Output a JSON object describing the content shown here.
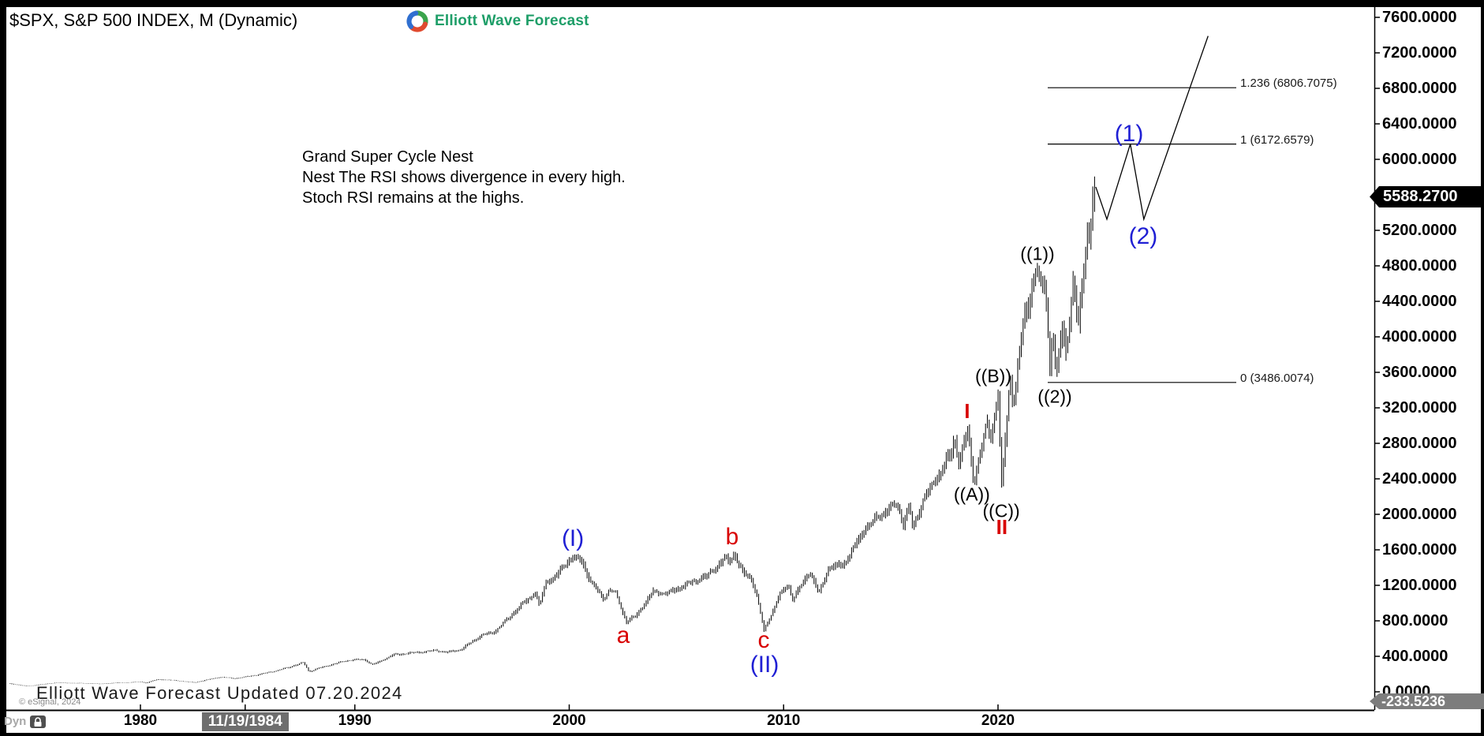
{
  "header": {
    "title": "$SPX, S&P 500 INDEX, M (Dynamic)",
    "logo_text": "Elliott Wave Forecast"
  },
  "annotation": {
    "line1": "Grand Super Cycle Nest",
    "line2": "Nest The RSI shows divergence in every high.",
    "line3": "Stoch RSI remains at the highs."
  },
  "footer": {
    "watermark": "Elliott Wave Forecast Updated 07.20.2024",
    "copyright": "© eSignal, 2024",
    "template_label": "Dyn"
  },
  "price_scale": {
    "labels": [
      "7600.0000",
      "7200.0000",
      "6800.0000",
      "6400.0000",
      "6000.0000",
      "5600.0000",
      "5200.0000",
      "4800.0000",
      "4400.0000",
      "4000.0000",
      "3600.0000",
      "3200.0000",
      "2800.0000",
      "2400.0000",
      "2000.0000",
      "1600.0000",
      "1200.0000",
      "800.0000",
      "400.0000",
      "0.0000"
    ],
    "last_price": "5588.2700",
    "change_badge": "-233.5236"
  },
  "time_scale": {
    "labels": [
      {
        "text": "1980",
        "year": 1980,
        "highlighted": false
      },
      {
        "text": "11/19/1984",
        "year": 1984.885,
        "highlighted": true
      },
      {
        "text": "1990",
        "year": 1990,
        "highlighted": false
      },
      {
        "text": "2000",
        "year": 2000,
        "highlighted": false
      },
      {
        "text": "2010",
        "year": 2010,
        "highlighted": false
      },
      {
        "text": "2020",
        "year": 2020,
        "highlighted": false
      }
    ]
  },
  "fib_levels": [
    {
      "ratio": "1.236",
      "value": 6806.7075,
      "label": "1.236 (6806.7075)"
    },
    {
      "ratio": "1",
      "value": 6172.6579,
      "label": "1 (6172.6579)"
    },
    {
      "ratio": "0",
      "value": 3486.0074,
      "label": "0 (3486.0074)"
    }
  ],
  "wave_labels": [
    {
      "text": "(I)",
      "style": "blue",
      "year": 2000.17,
      "value": 1724
    },
    {
      "text": "a",
      "style": "red",
      "year": 2002.52,
      "value": 630
    },
    {
      "text": "b",
      "style": "red",
      "year": 2007.6,
      "value": 1742
    },
    {
      "text": "c",
      "style": "red",
      "year": 2009.07,
      "value": 577
    },
    {
      "text": "(II)",
      "style": "blue",
      "year": 2009.11,
      "value": 301
    },
    {
      "text": "I",
      "style": "redb",
      "year": 2018.56,
      "value": 3164
    },
    {
      "text": "((A))",
      "style": "black",
      "year": 2018.78,
      "value": 2222
    },
    {
      "text": "((B))",
      "style": "black",
      "year": 2019.78,
      "value": 3556
    },
    {
      "text": "((C))",
      "style": "black",
      "year": 2020.15,
      "value": 2036
    },
    {
      "text": "II",
      "style": "redb",
      "year": 2020.18,
      "value": 1858
    },
    {
      "text": "((1))",
      "style": "black",
      "year": 2021.84,
      "value": 4933
    },
    {
      "text": "((2))",
      "style": "black",
      "year": 2022.65,
      "value": 3324
    },
    {
      "text": "(1)",
      "style": "blue",
      "year": 2026.11,
      "value": 6284
    },
    {
      "text": "(2)",
      "style": "blue",
      "year": 2026.77,
      "value": 5129
    }
  ],
  "chart_data": {
    "type": "bar",
    "title": "$SPX, S&P 500 INDEX, M (Dynamic)",
    "series_name": "S&P 500 monthly price bars (approximate anchor points: [year, price])",
    "x_axis_labels": [
      "1980",
      "11/19/1984",
      "1990",
      "2000",
      "2010",
      "2020"
    ],
    "ylim": [
      0,
      7600
    ],
    "y_tick_step": 400,
    "last_price": 5588.27,
    "change": -233.5236,
    "anchor_points": [
      [
        1973.92,
        95
      ],
      [
        1974.8,
        63
      ],
      [
        1976.1,
        102
      ],
      [
        1977.5,
        96
      ],
      [
        1978.2,
        89
      ],
      [
        1979.0,
        101
      ],
      [
        1980.1,
        111
      ],
      [
        1980.33,
        100
      ],
      [
        1980.9,
        140
      ],
      [
        1981.6,
        130
      ],
      [
        1982.6,
        104
      ],
      [
        1983.8,
        166
      ],
      [
        1984.5,
        151
      ],
      [
        1985.5,
        188
      ],
      [
        1986.6,
        248
      ],
      [
        1987.7,
        329
      ],
      [
        1987.95,
        226
      ],
      [
        1988.3,
        259
      ],
      [
        1989.7,
        352
      ],
      [
        1990.55,
        365
      ],
      [
        1990.9,
        304
      ],
      [
        1991.9,
        417
      ],
      [
        1993.9,
        467
      ],
      [
        1994.3,
        444
      ],
      [
        1995.0,
        472
      ],
      [
        1996.0,
        636
      ],
      [
        1996.55,
        668
      ],
      [
        1997.1,
        792
      ],
      [
        1997.75,
        950
      ],
      [
        1998.5,
        1120
      ],
      [
        1998.7,
        965
      ],
      [
        1999.0,
        1240
      ],
      [
        1999.5,
        1310
      ],
      [
        1999.85,
        1420
      ],
      [
        2000.2,
        1527
      ],
      [
        2000.65,
        1480
      ],
      [
        2001.1,
        1240
      ],
      [
        2001.7,
        1045
      ],
      [
        2001.95,
        1148
      ],
      [
        2002.25,
        1110
      ],
      [
        2002.75,
        788
      ],
      [
        2003.2,
        855
      ],
      [
        2004.0,
        1132
      ],
      [
        2004.6,
        1098
      ],
      [
        2005.5,
        1205
      ],
      [
        2006.5,
        1303
      ],
      [
        2007.35,
        1510
      ],
      [
        2007.55,
        1455
      ],
      [
        2007.78,
        1562
      ],
      [
        2008.2,
        1325
      ],
      [
        2008.55,
        1290
      ],
      [
        2008.8,
        1130
      ],
      [
        2009.17,
        683
      ],
      [
        2009.9,
        1092
      ],
      [
        2010.3,
        1200
      ],
      [
        2010.52,
        1040
      ],
      [
        2011.3,
        1360
      ],
      [
        2011.73,
        1105
      ],
      [
        2012.2,
        1408
      ],
      [
        2012.85,
        1424
      ],
      [
        2013.9,
        1842
      ],
      [
        2014.7,
        2012
      ],
      [
        2015.4,
        2126
      ],
      [
        2015.65,
        1880
      ],
      [
        2015.95,
        2090
      ],
      [
        2016.1,
        1830
      ],
      [
        2016.6,
        2168
      ],
      [
        2017.9,
        2678
      ],
      [
        2018.05,
        2868
      ],
      [
        2018.28,
        2588
      ],
      [
        2018.68,
        2935
      ],
      [
        2018.95,
        2350
      ],
      [
        2019.58,
        3022
      ],
      [
        2019.73,
        2856
      ],
      [
        2020.12,
        3386
      ],
      [
        2020.22,
        2192
      ],
      [
        2020.65,
        3580
      ],
      [
        2020.8,
        3234
      ],
      [
        2021.3,
        4180
      ],
      [
        2021.9,
        4802
      ],
      [
        2022.05,
        4515
      ],
      [
        2022.3,
        4630
      ],
      [
        2022.5,
        3640
      ],
      [
        2022.63,
        4130
      ],
      [
        2022.8,
        3492
      ],
      [
        2023.1,
        4180
      ],
      [
        2023.23,
        3812
      ],
      [
        2023.6,
        4598
      ],
      [
        2023.83,
        4104
      ],
      [
        2024.25,
        5254
      ],
      [
        2024.35,
        5052
      ],
      [
        2024.54,
        5655
      ]
    ],
    "projection_path": [
      [
        2024.56,
        5690
      ],
      [
        2025.08,
        5325
      ],
      [
        2026.17,
        6172.66
      ],
      [
        2026.8,
        5325
      ],
      [
        2029.8,
        7390
      ]
    ],
    "fib_levels": [
      {
        "ratio": 1.236,
        "value": 6806.7075
      },
      {
        "ratio": 1.0,
        "value": 6172.6579
      },
      {
        "ratio": 0.0,
        "value": 3486.0074
      }
    ]
  }
}
